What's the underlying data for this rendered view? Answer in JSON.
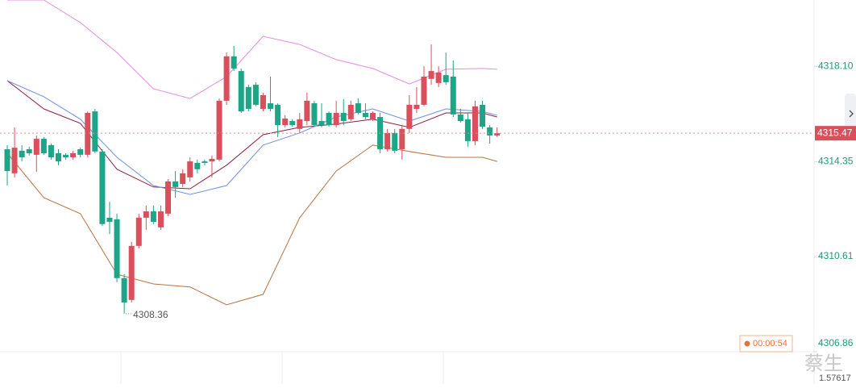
{
  "chart_data": {
    "type": "candlestick",
    "up_color": "#d9505c",
    "down_color": "#1ea487",
    "ylim": [
      4306.86,
      4320.72
    ],
    "yticks": [
      {
        "value": 4318.1,
        "label": "4318.10"
      },
      4314.35,
      4310.61,
      4306.86
    ],
    "last_price": 4315.47,
    "low_label": 4308.36,
    "volume_label": 1.57617,
    "timer": "00:00:54",
    "watermark": "蔡生",
    "candles": [
      [
        4314.84,
        4315.0,
        4313.41,
        4313.98
      ],
      [
        4313.89,
        4315.7,
        4313.73,
        4314.9
      ],
      [
        4314.78,
        4315.0,
        4314.36,
        4314.52
      ],
      [
        4314.84,
        4314.94,
        4314.59,
        4314.68
      ],
      [
        4314.62,
        4315.38,
        4313.95,
        4315.25
      ],
      [
        4315.25,
        4315.32,
        4314.62,
        4314.68
      ],
      [
        4315.0,
        4315.06,
        4314.43,
        4314.52
      ],
      [
        4314.68,
        4314.84,
        4314.21,
        4314.36
      ],
      [
        4314.62,
        4314.68,
        4314.43,
        4314.52
      ],
      [
        4314.52,
        4314.78,
        4314.43,
        4314.68
      ],
      [
        4314.84,
        4314.9,
        4314.52,
        4314.62
      ],
      [
        4314.62,
        4316.33,
        4314.52,
        4316.27
      ],
      [
        4316.33,
        4316.43,
        4314.68,
        4314.75
      ],
      [
        4314.75,
        4314.84,
        4311.82,
        4311.89
      ],
      [
        4312.14,
        4312.77,
        4311.5,
        4311.98
      ],
      [
        4312.08,
        4312.3,
        4309.6,
        4309.76
      ],
      [
        4309.76,
        4309.91,
        4308.36,
        4308.8
      ],
      [
        4308.9,
        4311.19,
        4308.8,
        4311.03
      ],
      [
        4311.03,
        4312.3,
        4310.93,
        4312.14
      ],
      [
        4312.14,
        4312.62,
        4311.66,
        4312.39
      ],
      [
        4312.39,
        4312.62,
        4311.89,
        4311.98
      ],
      [
        4311.76,
        4312.62,
        4311.66,
        4312.39
      ],
      [
        4312.3,
        4313.66,
        4312.2,
        4313.57
      ],
      [
        4313.57,
        4313.98,
        4312.93,
        4313.35
      ],
      [
        4313.47,
        4314.05,
        4313.35,
        4313.89
      ],
      [
        4313.73,
        4314.52,
        4313.57,
        4314.36
      ],
      [
        4314.3,
        4314.43,
        4313.89,
        4314.05
      ],
      [
        4314.36,
        4314.43,
        4314.21,
        4314.3
      ],
      [
        4314.36,
        4314.59,
        4313.73,
        4314.46
      ],
      [
        4314.43,
        4316.84,
        4314.36,
        4316.75
      ],
      [
        4316.75,
        4318.65,
        4316.59,
        4318.5
      ],
      [
        4318.5,
        4318.91,
        4317.92,
        4318.02
      ],
      [
        4317.92,
        4318.02,
        4316.27,
        4316.33
      ],
      [
        4317.29,
        4317.38,
        4316.33,
        4316.43
      ],
      [
        4317.38,
        4317.48,
        4316.53,
        4316.59
      ],
      [
        4316.43,
        4317.07,
        4316.33,
        4316.97
      ],
      [
        4316.65,
        4317.7,
        4316.33,
        4316.43
      ],
      [
        4316.59,
        4316.65,
        4315.32,
        4315.79
      ],
      [
        4315.79,
        4316.18,
        4315.7,
        4316.05
      ],
      [
        4315.95,
        4316.02,
        4315.73,
        4315.79
      ],
      [
        4315.64,
        4316.27,
        4315.48,
        4316.02
      ],
      [
        4315.95,
        4317.07,
        4315.79,
        4316.75
      ],
      [
        4316.65,
        4316.75,
        4315.73,
        4315.79
      ],
      [
        4315.95,
        4316.65,
        4315.7,
        4315.79
      ],
      [
        4316.27,
        4316.33,
        4315.73,
        4315.79
      ],
      [
        4315.79,
        4316.75,
        4315.7,
        4316.27
      ],
      [
        4316.27,
        4316.81,
        4315.79,
        4315.95
      ],
      [
        4316.02,
        4316.75,
        4315.95,
        4316.59
      ],
      [
        4316.65,
        4316.84,
        4316.21,
        4316.27
      ],
      [
        4316.27,
        4316.65,
        4316.02,
        4316.11
      ],
      [
        4316.02,
        4316.33,
        4315.95,
        4316.27
      ],
      [
        4316.11,
        4316.27,
        4314.68,
        4314.84
      ],
      [
        4314.84,
        4315.64,
        4314.75,
        4315.48
      ],
      [
        4315.48,
        4315.64,
        4314.68,
        4314.78
      ],
      [
        4314.84,
        4315.79,
        4314.43,
        4315.64
      ],
      [
        4315.64,
        4316.97,
        4315.48,
        4316.59
      ],
      [
        4316.43,
        4317.29,
        4316.27,
        4316.59
      ],
      [
        4316.59,
        4318.11,
        4316.53,
        4317.7
      ],
      [
        4317.61,
        4318.97,
        4317.38,
        4317.92
      ],
      [
        4317.45,
        4318.11,
        4317.29,
        4317.86
      ],
      [
        4317.76,
        4318.65,
        4317.38,
        4317.48
      ],
      [
        4317.7,
        4318.34,
        4316.11,
        4316.21
      ],
      [
        4316.21,
        4316.43,
        4315.89,
        4315.95
      ],
      [
        4316.02,
        4316.27,
        4314.94,
        4315.16
      ],
      [
        4315.16,
        4316.75,
        4315.0,
        4316.53
      ],
      [
        4316.59,
        4316.75,
        4315.64,
        4315.73
      ],
      [
        4315.7,
        4315.79,
        4315.06,
        4315.38
      ],
      [
        4315.38,
        4315.7,
        4315.32,
        4315.47
      ]
    ],
    "overlays": [
      {
        "color": "#e38be0",
        "x": [
          0,
          5,
          10,
          15,
          20,
          25,
          30,
          35,
          40,
          45,
          50,
          55,
          60,
          65,
          67
        ],
        "values": [
          4320.72,
          4320.72,
          4319.83,
          4318.65,
          4317.22,
          4316.84,
          4317.7,
          4319.29,
          4318.97,
          4318.37,
          4318.02,
          4317.41,
          4317.99,
          4318.02,
          4317.99
        ]
      },
      {
        "color": "#b8733f",
        "x": [
          0,
          5,
          10,
          15,
          20,
          25,
          30,
          35,
          40,
          45,
          50,
          55,
          60,
          65,
          67
        ],
        "values": [
          4314.68,
          4312.93,
          4312.3,
          4309.91,
          4309.53,
          4309.41,
          4308.71,
          4309.12,
          4312.14,
          4313.98,
          4315.0,
          4314.75,
          4314.52,
          4314.52,
          4314.36
        ]
      },
      {
        "color": "#8b1f3f",
        "x": [
          0,
          5,
          10,
          15,
          20,
          25,
          30,
          35,
          40,
          45,
          50,
          55,
          60,
          65,
          67
        ],
        "values": [
          4317.54,
          4316.43,
          4315.86,
          4314.05,
          4313.35,
          4313.28,
          4314.21,
          4315.41,
          4315.7,
          4315.83,
          4316.02,
          4315.7,
          4316.27,
          4316.27,
          4316.11
        ]
      },
      {
        "color": "#6e8fe0",
        "x": [
          0,
          5,
          10,
          15,
          20,
          25,
          30,
          35,
          40,
          45,
          50,
          55,
          60,
          65,
          67
        ],
        "values": [
          4317.54,
          4316.91,
          4316.02,
          4314.52,
          4313.41,
          4313.06,
          4313.41,
          4315.0,
          4315.48,
          4316.11,
          4316.43,
          4315.95,
          4316.43,
          4316.33,
          4316.18
        ]
      }
    ]
  }
}
